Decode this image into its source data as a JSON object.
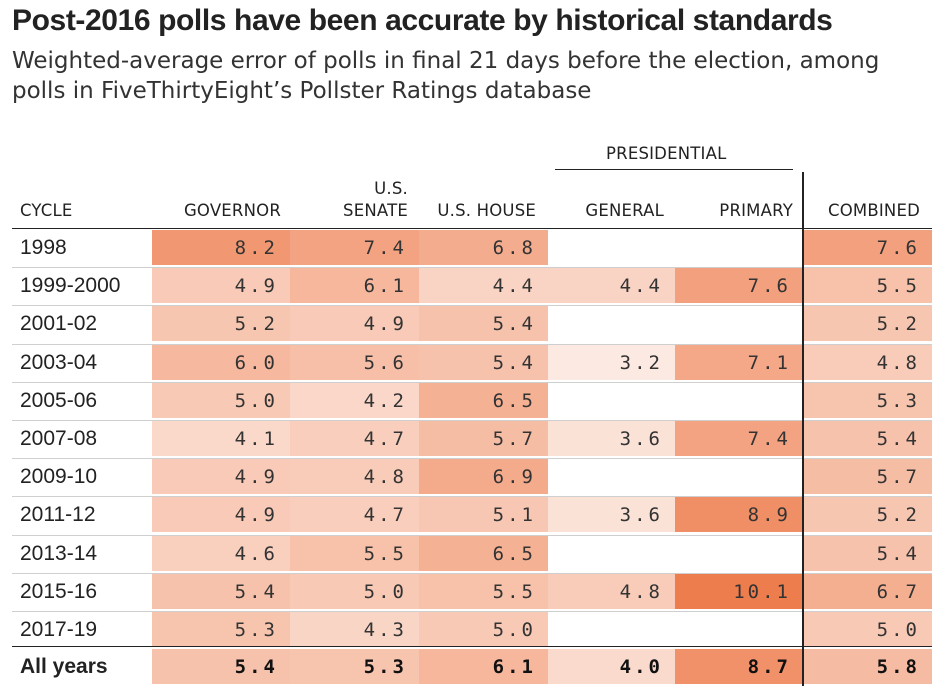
{
  "title": "Post-2016 polls have been accurate by historical standards",
  "subtitle": "Weighted-average error of polls in final 21 days before the election, among polls in FiveThirtyEight’s Pollster Ratings database",
  "headers": {
    "presidential_group": "PRESIDENTIAL",
    "cycle": "CYCLE",
    "governor": "GOVERNOR",
    "senate_top": "U.S.",
    "senate_bottom": "SENATE",
    "house": "U.S. HOUSE",
    "general": "GENERAL",
    "primary": "PRIMARY",
    "combined": "COMBINED"
  },
  "chart_data": {
    "type": "table",
    "columns": [
      "GOVERNOR",
      "U.S. SENATE",
      "U.S. HOUSE",
      "GENERAL",
      "PRIMARY",
      "COMBINED"
    ],
    "column_groups": [
      {
        "name": "PRESIDENTIAL",
        "columns": [
          "GENERAL",
          "PRIMARY"
        ]
      }
    ],
    "rows": [
      {
        "cycle": "1998",
        "values": [
          8.2,
          7.4,
          6.8,
          null,
          null,
          7.6
        ]
      },
      {
        "cycle": "1999-2000",
        "values": [
          4.9,
          6.1,
          4.4,
          4.4,
          7.6,
          5.5
        ]
      },
      {
        "cycle": "2001-02",
        "values": [
          5.2,
          4.9,
          5.4,
          null,
          null,
          5.2
        ]
      },
      {
        "cycle": "2003-04",
        "values": [
          6.0,
          5.6,
          5.4,
          3.2,
          7.1,
          4.8
        ]
      },
      {
        "cycle": "2005-06",
        "values": [
          5.0,
          4.2,
          6.5,
          null,
          null,
          5.3
        ]
      },
      {
        "cycle": "2007-08",
        "values": [
          4.1,
          4.7,
          5.7,
          3.6,
          7.4,
          5.4
        ]
      },
      {
        "cycle": "2009-10",
        "values": [
          4.9,
          4.8,
          6.9,
          null,
          null,
          5.7
        ]
      },
      {
        "cycle": "2011-12",
        "values": [
          4.9,
          4.7,
          5.1,
          3.6,
          8.9,
          5.2
        ]
      },
      {
        "cycle": "2013-14",
        "values": [
          4.6,
          5.5,
          6.5,
          null,
          null,
          5.4
        ]
      },
      {
        "cycle": "2015-16",
        "values": [
          5.4,
          5.0,
          5.5,
          4.8,
          10.1,
          6.7
        ]
      },
      {
        "cycle": "2017-19",
        "values": [
          5.3,
          4.3,
          5.0,
          null,
          null,
          5.0
        ]
      }
    ],
    "total": {
      "cycle": "All years",
      "values": [
        5.4,
        5.3,
        6.1,
        4.0,
        8.7,
        5.8
      ]
    },
    "color_scale": {
      "low": "#fdf0ea",
      "high": "#ee7d4e"
    }
  }
}
